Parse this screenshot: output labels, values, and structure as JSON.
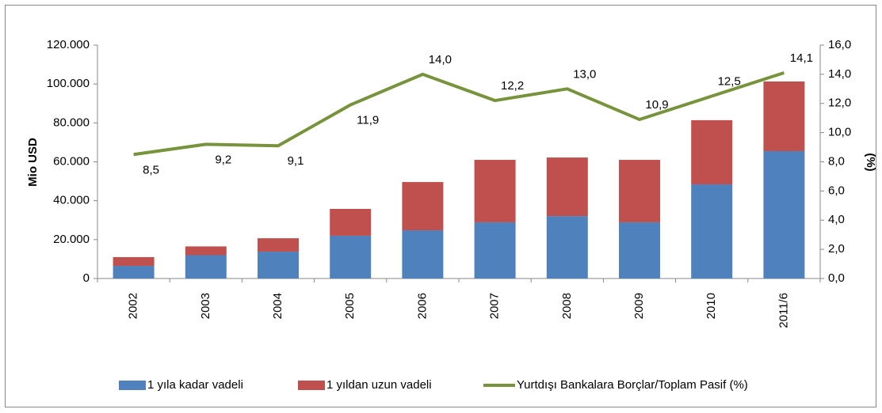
{
  "chart_data": {
    "type": "bar",
    "stacked": true,
    "categories": [
      "2002",
      "2003",
      "2004",
      "2005",
      "2006",
      "2007",
      "2008",
      "2009",
      "2010",
      "2011/6"
    ],
    "ylabel": "Mio USD",
    "y2label": "(%)",
    "series": [
      {
        "name": "1 yıla kadar vadeli",
        "type": "bar",
        "color": "#4f81bd",
        "values": [
          6500,
          12000,
          13800,
          22000,
          24800,
          28900,
          32100,
          28900,
          48400,
          65500
        ]
      },
      {
        "name": "1 yıldan uzun vadeli",
        "type": "bar",
        "color": "#c0504d",
        "values": [
          4500,
          4500,
          6900,
          13800,
          24800,
          32100,
          30100,
          32100,
          33000,
          35800
        ]
      },
      {
        "name": "Yurtdışı Bankalara Borçlar/Toplam Pasif (%)",
        "type": "line",
        "axis": "y2",
        "color": "#77933c",
        "values": [
          8.5,
          9.2,
          9.1,
          11.9,
          14.0,
          12.2,
          13.0,
          10.9,
          12.5,
          14.1
        ],
        "value_labels": [
          "8,5",
          "9,2",
          "9,1",
          "11,9",
          "14,0",
          "12,2",
          "13,0",
          "10,9",
          "12,5",
          "14,1"
        ]
      }
    ],
    "ylim": [
      0,
      120000
    ],
    "yticks": [
      0,
      {
        "value": 20000,
        "label": "20.000"
      },
      {
        "value": 40000,
        "label": "40.000"
      },
      {
        "value": 60000,
        "label": "60.000"
      },
      {
        "value": 80000,
        "label": "80.000"
      },
      {
        "value": 100000,
        "label": "100.000"
      },
      {
        "value": 120000,
        "label": "120.000"
      }
    ],
    "y2lim": [
      0,
      16
    ],
    "y2ticks": [
      {
        "value": 0,
        "label": "0,0"
      },
      {
        "value": 2,
        "label": "2,0"
      },
      {
        "value": 4,
        "label": "4,0"
      },
      {
        "value": 6,
        "label": "6,0"
      },
      {
        "value": 8,
        "label": "8,0"
      },
      {
        "value": 10,
        "label": "10,0"
      },
      {
        "value": 12,
        "label": "12,0"
      },
      {
        "value": 14,
        "label": "14,0"
      },
      {
        "value": 16,
        "label": "16,0"
      }
    ],
    "grid": false,
    "legend": "bottom"
  }
}
